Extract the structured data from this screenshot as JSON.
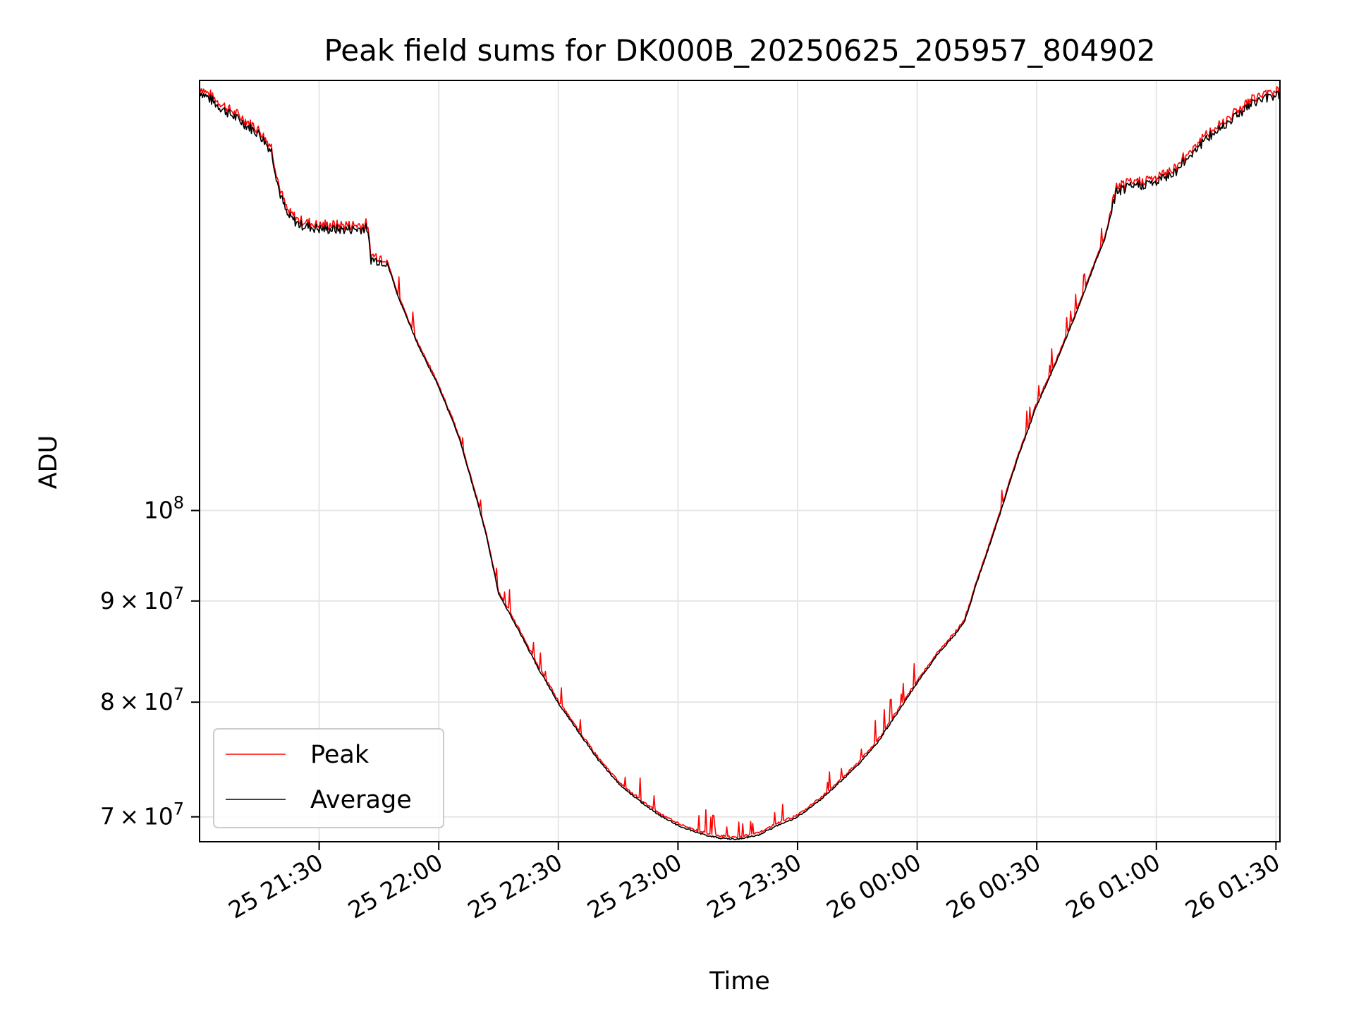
{
  "chart_data": {
    "type": "line",
    "title": "Peak field sums for DK000B_20250625_205957_804902",
    "xlabel": "Time",
    "ylabel": "ADU",
    "x_date": "2025-06-25",
    "xlim": [
      "2025-06-25 21:00",
      "2025-06-26 01:31"
    ],
    "ylim": [
      68000000,
      165000000
    ],
    "y_scale": "log",
    "grid": true,
    "legend_position": "lower-left",
    "x_ticks": [
      {
        "time": "2025-06-25 21:30",
        "label": "25 21:30"
      },
      {
        "time": "2025-06-25 22:00",
        "label": "25 22:00"
      },
      {
        "time": "2025-06-25 22:30",
        "label": "25 22:30"
      },
      {
        "time": "2025-06-25 23:00",
        "label": "25 23:00"
      },
      {
        "time": "2025-06-25 23:30",
        "label": "25 23:30"
      },
      {
        "time": "2025-06-26 00:00",
        "label": "26 00:00"
      },
      {
        "time": "2025-06-26 00:30",
        "label": "26 00:30"
      },
      {
        "time": "2025-06-26 01:00",
        "label": "26 01:00"
      },
      {
        "time": "2025-06-26 01:30",
        "label": "26 01:30"
      }
    ],
    "y_ticks": [
      {
        "value": 70000000,
        "mantissa": "7",
        "exp": "7"
      },
      {
        "value": 80000000,
        "mantissa": "8",
        "exp": "7"
      },
      {
        "value": 90000000,
        "mantissa": "9",
        "exp": "7"
      },
      {
        "value": 100000000,
        "mantissa": "",
        "exp": "8"
      }
    ],
    "series": [
      {
        "name": "Peak",
        "color": "#ff0000"
      },
      {
        "name": "Average",
        "color": "#000000"
      }
    ],
    "average_points": [
      [
        "21:00",
        163000000
      ],
      [
        "21:05",
        160000000
      ],
      [
        "21:10",
        157500000
      ],
      [
        "21:15",
        155000000
      ],
      [
        "21:18",
        152000000
      ],
      [
        "21:20",
        145000000
      ],
      [
        "21:22",
        141000000
      ],
      [
        "21:25",
        139500000
      ],
      [
        "21:30",
        138800000
      ],
      [
        "21:35",
        138700000
      ],
      [
        "21:40",
        138800000
      ],
      [
        "21:42",
        138900000
      ],
      [
        "21:43",
        134000000
      ],
      [
        "21:47",
        133500000
      ],
      [
        "21:50",
        128000000
      ],
      [
        "21:55",
        121000000
      ],
      [
        "22:00",
        115500000
      ],
      [
        "22:05",
        109000000
      ],
      [
        "22:10",
        100500000
      ],
      [
        "22:12",
        97000000
      ],
      [
        "22:15",
        90800000
      ],
      [
        "22:20",
        87000000
      ],
      [
        "22:25",
        83200000
      ],
      [
        "22:30",
        79900000
      ],
      [
        "22:35",
        77300000
      ],
      [
        "22:40",
        74800000
      ],
      [
        "22:45",
        72800000
      ],
      [
        "22:50",
        71400000
      ],
      [
        "22:55",
        70200000
      ],
      [
        "23:00",
        69300000
      ],
      [
        "23:05",
        68700000
      ],
      [
        "23:10",
        68300000
      ],
      [
        "23:15",
        68200000
      ],
      [
        "23:20",
        68500000
      ],
      [
        "23:25",
        69300000
      ],
      [
        "23:30",
        70000000
      ],
      [
        "23:35",
        71200000
      ],
      [
        "23:40",
        72700000
      ],
      [
        "23:45",
        74300000
      ],
      [
        "23:50",
        76300000
      ],
      [
        "23:55",
        79000000
      ],
      [
        "00:00",
        81800000
      ],
      [
        "00:05",
        84500000
      ],
      [
        "00:10",
        86800000
      ],
      [
        "00:12",
        88000000
      ],
      [
        "00:15",
        92000000
      ],
      [
        "00:20",
        98500000
      ],
      [
        "00:25",
        106000000
      ],
      [
        "00:30",
        113000000
      ],
      [
        "00:35",
        119000000
      ],
      [
        "00:40",
        126000000
      ],
      [
        "00:45",
        134000000
      ],
      [
        "00:47",
        137000000
      ],
      [
        "00:50",
        145000000
      ],
      [
        "00:55",
        146000000
      ],
      [
        "01:00",
        146500000
      ],
      [
        "01:05",
        148500000
      ],
      [
        "01:10",
        152500000
      ],
      [
        "01:15",
        155500000
      ],
      [
        "01:20",
        158500000
      ],
      [
        "01:25",
        161000000
      ],
      [
        "01:31",
        162500000
      ]
    ]
  }
}
